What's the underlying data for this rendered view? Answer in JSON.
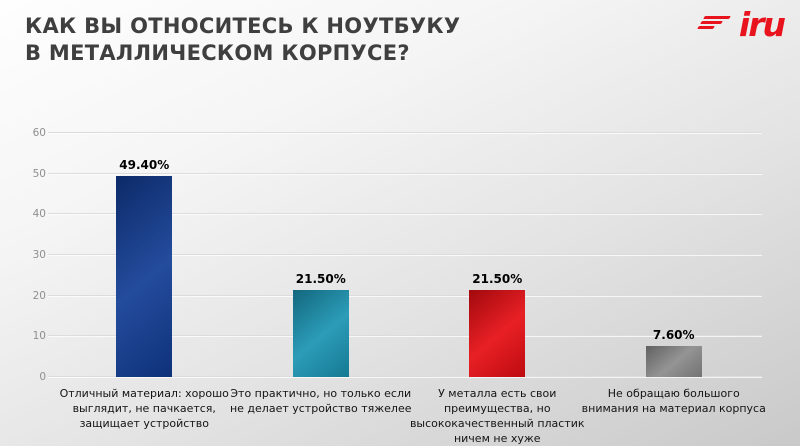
{
  "header": {
    "title_lines": [
      "КАК ВЫ ОТНОСИТЕСЬ К НОУТБУКУ",
      "В МЕТАЛЛИЧЕСКОМ КОРПУСЕ?"
    ],
    "logo_text": "iru"
  },
  "colors": {
    "logo_red": "#e8131d",
    "title_gray": "#3f3f3f",
    "axis_label_gray": "#8f8f8f"
  },
  "chart_data": {
    "type": "bar",
    "title": "КАК ВЫ ОТНОСИТЕСЬ К НОУТБУКУ В МЕТАЛЛИЧЕСКОМ КОРПУСЕ?",
    "categories": [
      "Отличный материал: хорошо выглядит, не пачкается, защищает устройство",
      "Это практично, но только если не делает устройство тяжелее",
      "У металла есть свои преимущества, но высококачественный пластик ничем не хуже",
      "Не обращаю большого внимания на материал корпуса"
    ],
    "category_lines": [
      [
        "Отличный материал: хорошо",
        "выглядит, не пачкается,",
        "защищает  устройство"
      ],
      [
        "Это практично,  но только если",
        "не делает  устройство тяжелее"
      ],
      [
        "У металла  есть свои",
        "преимущества, но",
        "высококачественный пластик",
        "ничем не хуже"
      ],
      [
        "Не обращаю большого",
        "внимания на материал корпуса"
      ]
    ],
    "values": [
      49.4,
      21.5,
      21.5,
      7.6
    ],
    "value_labels": [
      "49.40%",
      "21.50%",
      "21.50%",
      "7.60%"
    ],
    "bar_colors": [
      "#113c94",
      "#1a93b2",
      "#e60d12",
      "#8b8b8b"
    ],
    "yticks": [
      0,
      10,
      20,
      30,
      40,
      50,
      60
    ],
    "ylim": [
      0,
      60
    ],
    "grid": true,
    "legend": null,
    "xlabel": "",
    "ylabel": ""
  }
}
